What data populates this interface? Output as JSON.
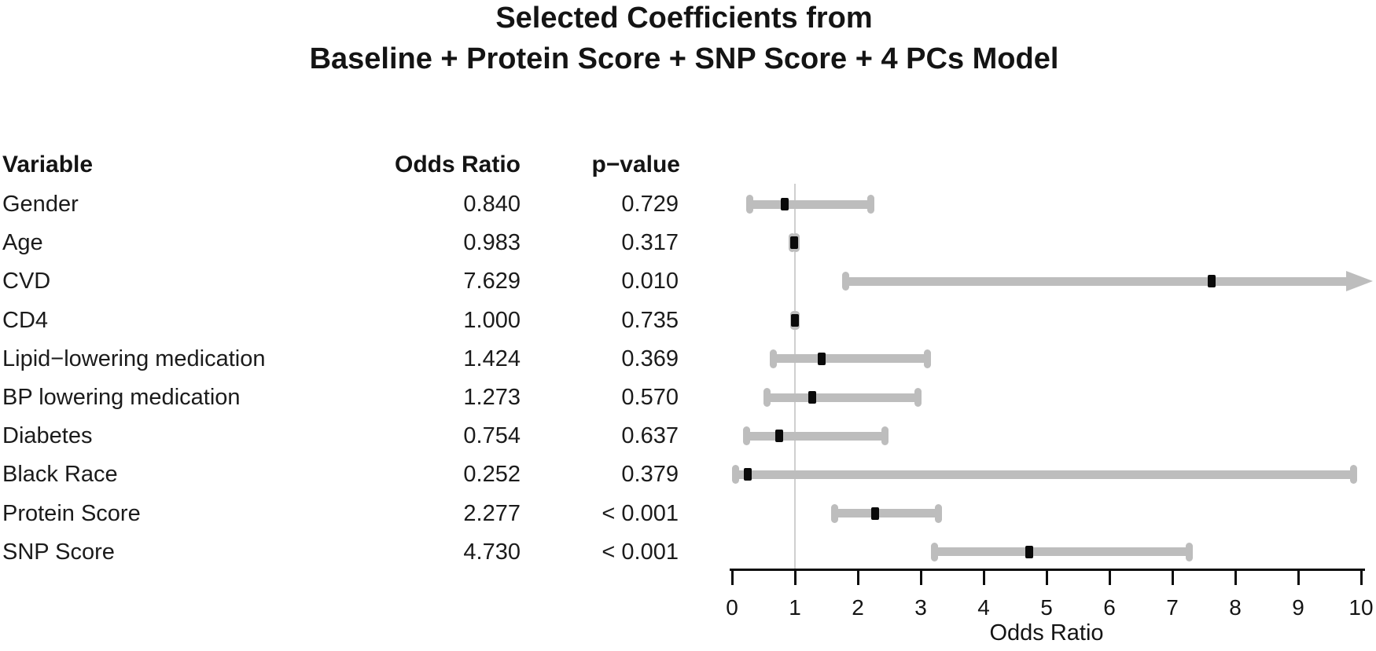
{
  "title": {
    "line1": "Selected Coefficients from",
    "line2": "Baseline + Protein Score + SNP Score + 4 PCs Model"
  },
  "table": {
    "headers": [
      "Variable",
      "Odds Ratio",
      "p−value"
    ]
  },
  "colors": {
    "bar": "#bdbdbd",
    "point": "#0a0a0a",
    "reference_line": "#cfcfcf",
    "axis": "#0d0d0d"
  },
  "chart_data": {
    "type": "forest",
    "xlabel": "Odds Ratio",
    "xlim": [
      0,
      10
    ],
    "xticks": [
      0,
      1,
      2,
      3,
      4,
      5,
      6,
      7,
      8,
      9,
      10
    ],
    "reference_line": 1,
    "rows": [
      {
        "label": "Gender",
        "odds_ratio_text": "0.840",
        "p_value_text": "0.729",
        "or": 0.84,
        "ci_low": 0.28,
        "ci_high": 2.21,
        "arrow_high": false
      },
      {
        "label": "Age",
        "odds_ratio_text": "0.983",
        "p_value_text": "0.317",
        "or": 0.983,
        "ci_low": 0.95,
        "ci_high": 1.02,
        "arrow_high": false
      },
      {
        "label": "CVD",
        "odds_ratio_text": "7.629",
        "p_value_text": "0.010",
        "or": 7.629,
        "ci_low": 1.8,
        "ci_high": 10.2,
        "arrow_high": true
      },
      {
        "label": "CD4",
        "odds_ratio_text": "1.000",
        "p_value_text": "0.735",
        "or": 1.0,
        "ci_low": 0.985,
        "ci_high": 1.015,
        "arrow_high": false
      },
      {
        "label": "Lipid−lowering medication",
        "odds_ratio_text": "1.424",
        "p_value_text": "0.369",
        "or": 1.424,
        "ci_low": 0.65,
        "ci_high": 3.1,
        "arrow_high": false
      },
      {
        "label": "BP lowering medication",
        "odds_ratio_text": "1.273",
        "p_value_text": "0.570",
        "or": 1.273,
        "ci_low": 0.55,
        "ci_high": 2.95,
        "arrow_high": false
      },
      {
        "label": "Diabetes",
        "odds_ratio_text": "0.754",
        "p_value_text": "0.637",
        "or": 0.754,
        "ci_low": 0.23,
        "ci_high": 2.43,
        "arrow_high": false
      },
      {
        "label": "Black Race",
        "odds_ratio_text": "0.252",
        "p_value_text": "0.379",
        "or": 0.252,
        "ci_low": 0.05,
        "ci_high": 9.88,
        "arrow_high": false
      },
      {
        "label": "Protein Score",
        "odds_ratio_text": "2.277",
        "p_value_text": "< 0.001",
        "or": 2.277,
        "ci_low": 1.63,
        "ci_high": 3.28,
        "arrow_high": false
      },
      {
        "label": "SNP Score",
        "odds_ratio_text": "4.730",
        "p_value_text": "< 0.001",
        "or": 4.73,
        "ci_low": 3.22,
        "ci_high": 7.27,
        "arrow_high": false
      }
    ]
  }
}
